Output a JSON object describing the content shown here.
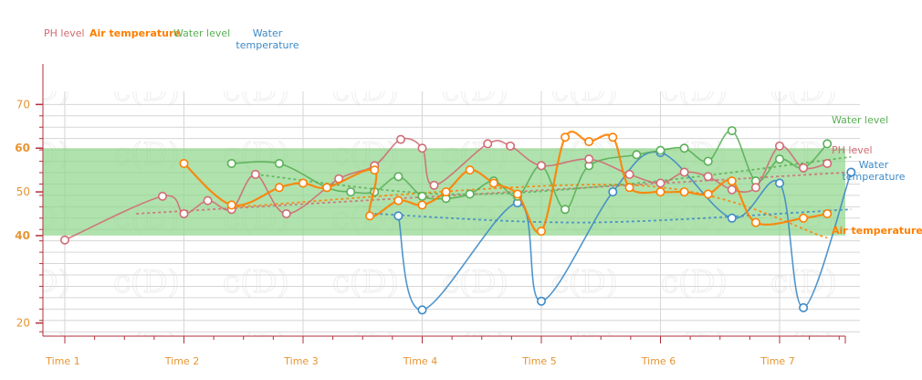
{
  "colors": {
    "ph": "#d06b73",
    "air": "#ff7f00",
    "water_level": "#5aaf56",
    "water_temp": "#3d8ac7",
    "band": "#8fd68a",
    "axis": "#b0313b",
    "tick_label": "#e69533",
    "grid": "#d6d6d6"
  },
  "legend": [
    {
      "key": "ph",
      "label": "PH level"
    },
    {
      "key": "air",
      "label": "Air temperature"
    },
    {
      "key": "water_level",
      "label": "Water level"
    },
    {
      "key": "water_temp",
      "label": "Water temperature"
    }
  ],
  "chart_data": {
    "type": "line",
    "title": "",
    "xlabel": "",
    "ylabel": "",
    "x_categories": [
      "Time 1",
      "Time 2",
      "Time 3",
      "Time 4",
      "Time 5",
      "Time 6",
      "Time 7"
    ],
    "x_range": [
      1,
      7.6
    ],
    "y_ticks": [
      20,
      40,
      50,
      60,
      70
    ],
    "y_range": [
      17,
      73
    ],
    "highlight_band": [
      40,
      60
    ],
    "grid": true,
    "series": [
      {
        "key": "ph",
        "name": "PH level",
        "end_label": "PH level",
        "points": [
          [
            1.0,
            39
          ],
          [
            1.82,
            49
          ],
          [
            2.0,
            45
          ],
          [
            2.2,
            48
          ],
          [
            2.4,
            46
          ],
          [
            2.6,
            54
          ],
          [
            2.86,
            45
          ],
          [
            3.3,
            53
          ],
          [
            3.6,
            56
          ],
          [
            3.82,
            62
          ],
          [
            4.0,
            60
          ],
          [
            4.1,
            51.5
          ],
          [
            4.55,
            61
          ],
          [
            4.74,
            60.5
          ],
          [
            5.0,
            56
          ],
          [
            5.4,
            57.5
          ],
          [
            5.74,
            54
          ],
          [
            6.0,
            52
          ],
          [
            6.2,
            54.5
          ],
          [
            6.4,
            53.5
          ],
          [
            6.6,
            50.5
          ],
          [
            6.8,
            51
          ],
          [
            7.0,
            60.5
          ],
          [
            7.2,
            55.5
          ],
          [
            7.4,
            56.5
          ]
        ],
        "trend": [
          [
            1.6,
            45
          ],
          [
            7.6,
            54.5
          ]
        ]
      },
      {
        "key": "air",
        "name": "Air temperature",
        "end_label": "Air temperature",
        "points": [
          [
            2.0,
            56.5
          ],
          [
            2.4,
            47
          ],
          [
            2.8,
            51
          ],
          [
            3.0,
            52
          ],
          [
            3.2,
            51
          ],
          [
            3.6,
            55
          ],
          [
            3.56,
            44.5
          ],
          [
            3.8,
            48
          ],
          [
            4.0,
            47
          ],
          [
            4.2,
            50
          ],
          [
            4.4,
            55
          ],
          [
            4.6,
            52
          ],
          [
            4.8,
            49.5
          ],
          [
            5.0,
            41
          ],
          [
            5.2,
            62.5
          ],
          [
            5.4,
            61.5
          ],
          [
            5.6,
            62.5
          ],
          [
            5.74,
            51
          ],
          [
            6.0,
            50
          ],
          [
            6.2,
            50
          ],
          [
            6.4,
            49.5
          ],
          [
            6.6,
            52.5
          ],
          [
            6.8,
            43
          ],
          [
            7.2,
            44
          ],
          [
            7.4,
            45
          ]
        ],
        "trend": [
          [
            2.4,
            46.5
          ],
          [
            5.8,
            51.5
          ],
          [
            7.4,
            39.5
          ]
        ]
      },
      {
        "key": "water_level",
        "name": "Water level",
        "end_label": "Water level",
        "points": [
          [
            2.4,
            56.5
          ],
          [
            2.8,
            56.5
          ],
          [
            3.2,
            51
          ],
          [
            3.4,
            50
          ],
          [
            3.6,
            50
          ],
          [
            3.8,
            53.5
          ],
          [
            4.0,
            49
          ],
          [
            4.2,
            48.5
          ],
          [
            4.4,
            49.5
          ],
          [
            4.6,
            52.5
          ],
          [
            4.8,
            49
          ],
          [
            5.0,
            56
          ],
          [
            5.2,
            46
          ],
          [
            5.4,
            56
          ],
          [
            5.8,
            58.5
          ],
          [
            6.0,
            59.5
          ],
          [
            6.2,
            60
          ],
          [
            6.4,
            57
          ],
          [
            6.6,
            64
          ],
          [
            6.8,
            52.5
          ],
          [
            7.0,
            57.5
          ],
          [
            7.2,
            55.5
          ],
          [
            7.4,
            61
          ]
        ],
        "trend": [
          [
            2.6,
            54
          ],
          [
            4.2,
            49.5
          ],
          [
            5.8,
            52
          ],
          [
            7.6,
            58
          ]
        ]
      },
      {
        "key": "water_temp",
        "name": "Water temperature",
        "end_label": "Water temperature",
        "points": [
          [
            3.8,
            44.5
          ],
          [
            4.0,
            23
          ],
          [
            4.8,
            47.5
          ],
          [
            5.0,
            25
          ],
          [
            5.6,
            50
          ],
          [
            6.0,
            59
          ],
          [
            6.6,
            44
          ],
          [
            7.0,
            52
          ],
          [
            7.2,
            23.5
          ],
          [
            7.6,
            54.5
          ]
        ],
        "trend": [
          [
            3.6,
            45
          ],
          [
            5.4,
            43
          ],
          [
            7.6,
            46
          ]
        ]
      }
    ]
  }
}
